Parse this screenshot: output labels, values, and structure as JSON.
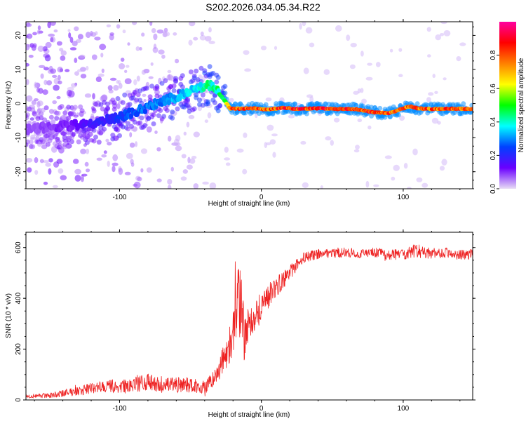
{
  "title": "S202.2026.034.05.34.R22",
  "chart_data": [
    {
      "type": "heatmap",
      "title": "S202.2026.034.05.34.R22",
      "xlabel": "Height of straight line (km)",
      "ylabel": "Frequency (Hz)",
      "xlim": [
        -166,
        149
      ],
      "ylim": [
        -25,
        24
      ],
      "xticks": [
        -100,
        0,
        100
      ],
      "yticks": [
        -20,
        -10,
        0,
        10,
        20
      ],
      "colorbar": {
        "label": "Normalized spectral amplitude",
        "range": [
          0,
          1
        ],
        "ticks": [
          "0.0",
          "0.2",
          "0.4",
          "0.6",
          "0.8"
        ],
        "colors": [
          "#e8dcf5",
          "#6a00ff",
          "#0040ff",
          "#00ffff",
          "#00ff00",
          "#ffff00",
          "#ff8000",
          "#ff0000",
          "#ff00a0"
        ]
      },
      "ridge": {
        "x": [
          -165,
          -150,
          -135,
          -120,
          -110,
          -100,
          -90,
          -80,
          -70,
          -60,
          -50,
          -42,
          -38,
          -32,
          -26,
          -22,
          -15,
          -5,
          5,
          15,
          25,
          40,
          55,
          65,
          72,
          80,
          90,
          95,
          100,
          105,
          110,
          120,
          130,
          140,
          148
        ],
        "y": [
          -7.5,
          -7.0,
          -6.5,
          -6.0,
          -5.0,
          -4.0,
          -2.5,
          -1.0,
          0.5,
          2.0,
          3.5,
          5.0,
          5.8,
          4.0,
          1.0,
          -1.5,
          -1.5,
          -1.4,
          -1.8,
          -1.2,
          -1.6,
          -1.4,
          -1.6,
          -1.6,
          -2.0,
          -2.6,
          -2.8,
          -2.2,
          -1.4,
          -0.8,
          -1.4,
          -1.6,
          -1.5,
          -1.5,
          -1.6
        ],
        "amplitude": [
          0.08,
          0.1,
          0.12,
          0.18,
          0.2,
          0.25,
          0.28,
          0.3,
          0.32,
          0.35,
          0.38,
          0.42,
          0.45,
          0.45,
          0.5,
          0.85,
          0.85,
          0.85,
          0.85,
          0.9,
          0.9,
          0.9,
          0.9,
          0.88,
          0.88,
          0.9,
          0.88,
          0.8,
          0.82,
          0.82,
          0.82,
          0.85,
          0.85,
          0.85,
          0.85
        ]
      }
    },
    {
      "type": "line",
      "xlabel": "Height of straight line (km)",
      "ylabel": "SNR (10 * v/v)",
      "xlim": [
        -166,
        149
      ],
      "ylim": [
        0,
        660
      ],
      "xticks": [
        -100,
        0,
        100
      ],
      "yticks": [
        0,
        200,
        400,
        600
      ],
      "color": "#ee2222",
      "x": [
        -166,
        -150,
        -140,
        -130,
        -120,
        -110,
        -100,
        -90,
        -80,
        -70,
        -60,
        -50,
        -40,
        -35,
        -30,
        -25,
        -20,
        -17,
        -14,
        -12,
        -10,
        -5,
        0,
        5,
        10,
        15,
        20,
        25,
        30,
        40,
        50,
        60,
        70,
        80,
        90,
        100,
        110,
        120,
        130,
        140,
        149
      ],
      "y": [
        15,
        18,
        25,
        35,
        45,
        55,
        50,
        60,
        70,
        55,
        60,
        60,
        50,
        70,
        120,
        180,
        250,
        390,
        380,
        220,
        300,
        330,
        370,
        410,
        440,
        470,
        500,
        530,
        560,
        575,
        580,
        580,
        575,
        580,
        570,
        575,
        585,
        575,
        580,
        570,
        575
      ],
      "noise": [
        8,
        10,
        14,
        18,
        22,
        26,
        26,
        30,
        34,
        30,
        30,
        30,
        26,
        35,
        45,
        60,
        90,
        140,
        140,
        90,
        80,
        70,
        60,
        50,
        40,
        35,
        30,
        25,
        22,
        20,
        20,
        20,
        20,
        20,
        22,
        22,
        30,
        22,
        20,
        20,
        20
      ]
    }
  ]
}
